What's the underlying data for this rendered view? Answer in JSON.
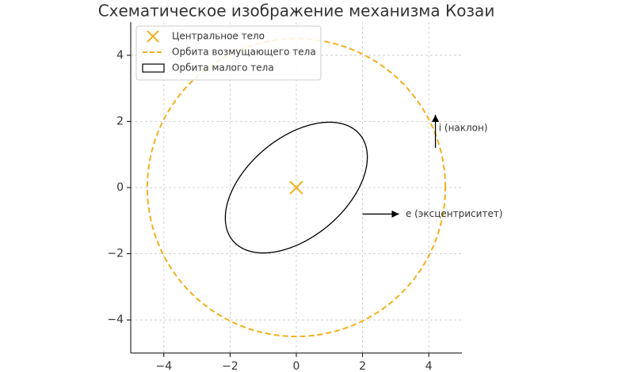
{
  "chart_data": {
    "type": "orbits",
    "title": "Схематическое изображение механизма Козаи",
    "xlim": [
      -5,
      5
    ],
    "ylim": [
      -5,
      5
    ],
    "xticks": [
      {
        "value": -4,
        "label": "−4"
      },
      {
        "value": -2,
        "label": "−2"
      },
      0,
      2,
      4
    ],
    "yticks": [
      {
        "value": -4,
        "label": "−4"
      },
      {
        "value": -2,
        "label": "−2"
      },
      0,
      2,
      4
    ],
    "grid": true,
    "legend": "upper left",
    "series": [
      {
        "name": "Центральное тело",
        "shape": "marker",
        "center": [
          0,
          0
        ],
        "color": "#f2b01e"
      },
      {
        "name": "Орбита возмущающего тела",
        "shape": "circle",
        "center": [
          0,
          0
        ],
        "radius": 4.5,
        "color": "#f2b01e",
        "linestyle": "dashed"
      },
      {
        "name": "Орбита малого тела",
        "shape": "ellipse",
        "center": [
          0,
          0
        ],
        "semi_axes": [
          2.5,
          1.5
        ],
        "angle": 40,
        "color": "#000000",
        "linestyle": "solid"
      }
    ],
    "annotations": [
      {
        "text": "i (наклон)",
        "arrow_start": [
          4.2,
          1.2
        ],
        "arrow_end": [
          4.2,
          2.2
        ],
        "text_xy": [
          4.3,
          1.8
        ]
      },
      {
        "text": "e (эксцентриситет)",
        "arrow_start": [
          2.0,
          -0.8
        ],
        "arrow_end": [
          3.1,
          -0.8
        ],
        "text_xy": [
          3.3,
          -0.8
        ]
      }
    ]
  }
}
